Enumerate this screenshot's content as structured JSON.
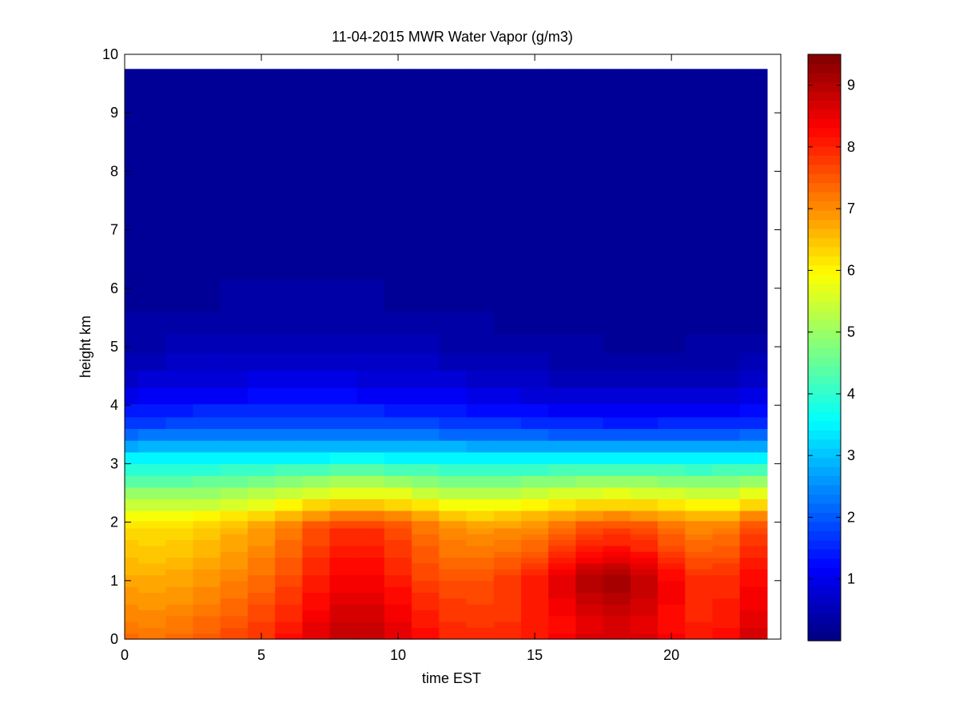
{
  "chart_data": {
    "type": "heatmap",
    "title": "11-04-2015 MWR Water Vapor (g/m3)",
    "xlabel": "time EST",
    "ylabel": "height km",
    "xlim": [
      0,
      24
    ],
    "ylim": [
      0,
      10
    ],
    "xticks": [
      0,
      5,
      10,
      15,
      20
    ],
    "yticks": [
      0,
      1,
      2,
      3,
      4,
      5,
      6,
      7,
      8,
      9,
      10
    ],
    "colorbar": {
      "colormap": "jet",
      "clim": [
        0,
        9.5
      ],
      "ticks": [
        1,
        2,
        3,
        4,
        5,
        6,
        7,
        8,
        9
      ]
    },
    "time_start": 0,
    "time_step": 1,
    "heights": [
      0.05,
      0.15,
      0.25,
      0.35,
      0.45,
      0.55,
      0.65,
      0.75,
      0.85,
      0.95,
      1.05,
      1.15,
      1.25,
      1.35,
      1.45,
      1.55,
      1.65,
      1.75,
      1.85,
      1.95,
      2.1,
      2.3,
      2.5,
      2.7,
      2.9,
      3.1,
      3.3,
      3.5,
      3.7,
      3.9,
      4.15,
      4.45,
      4.75,
      5.05,
      5.4,
      5.8,
      6.5,
      7.5,
      8.5,
      9.5
    ],
    "grid": false,
    "legend": "none"
  }
}
